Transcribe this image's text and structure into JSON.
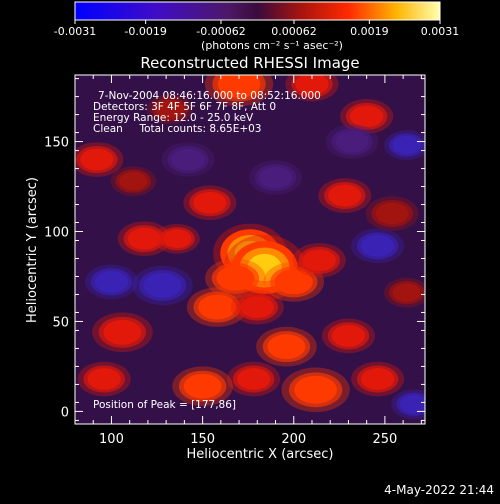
{
  "colorbar": {
    "ticks": [
      "-0.0031",
      "-0.0019",
      "-0.00062",
      "0.00062",
      "0.0019",
      "0.0031"
    ],
    "tick_values": [
      -0.0031,
      -0.0019,
      -0.00062,
      0.00062,
      0.0019,
      0.0031
    ],
    "range": [
      -0.0031,
      0.0031
    ],
    "units": "(photons cm⁻² s⁻¹ asec⁻²)"
  },
  "footer": {
    "timestamp": "4-May-2022 21:44"
  },
  "chart_data": {
    "type": "heatmap",
    "title": "Reconstructed RHESSI Image",
    "xlabel": "Heliocentric X (arcsec)",
    "ylabel": "Heliocentric Y (arcsec)",
    "xlim": [
      80,
      272
    ],
    "ylim": [
      -7,
      187
    ],
    "xticks": [
      "100",
      "150",
      "200",
      "250"
    ],
    "xtick_values": [
      100,
      150,
      200,
      250
    ],
    "yticks": [
      "0",
      "50",
      "100",
      "150"
    ],
    "ytick_values": [
      0,
      50,
      100,
      150
    ],
    "annotations": [
      "7-Nov-2004 08:46:16.000 to 08:52:16.000",
      "Detectors: 3F 4F 5F 6F 7F 8F, Att 0",
      "Energy Range: 12.0 - 25.0 keV",
      "Clean     Total counts: 8.65E+03"
    ],
    "peak_label": "Position of Peak = [177,86]",
    "peak": [
      177,
      86
    ],
    "blobs": [
      {
        "x": 176,
        "y": 88,
        "r": 9,
        "v": 1.0
      },
      {
        "x": 184,
        "y": 80,
        "r": 10,
        "v": 0.75
      },
      {
        "x": 168,
        "y": 74,
        "r": 8,
        "v": 0.55
      },
      {
        "x": 158,
        "y": 58,
        "r": 8,
        "v": 0.5
      },
      {
        "x": 180,
        "y": 58,
        "r": 7,
        "v": 0.45
      },
      {
        "x": 200,
        "y": 72,
        "r": 8,
        "v": 0.5
      },
      {
        "x": 214,
        "y": 84,
        "r": 7,
        "v": 0.45
      },
      {
        "x": 196,
        "y": 36,
        "r": 8,
        "v": 0.5
      },
      {
        "x": 212,
        "y": 12,
        "r": 9,
        "v": 0.55
      },
      {
        "x": 178,
        "y": 18,
        "r": 7,
        "v": 0.45
      },
      {
        "x": 150,
        "y": 14,
        "r": 8,
        "v": 0.5
      },
      {
        "x": 230,
        "y": 42,
        "r": 7,
        "v": 0.4
      },
      {
        "x": 246,
        "y": 18,
        "r": 7,
        "v": 0.4
      },
      {
        "x": 136,
        "y": 96,
        "r": 6,
        "v": 0.4
      },
      {
        "x": 154,
        "y": 116,
        "r": 7,
        "v": 0.4
      },
      {
        "x": 118,
        "y": 96,
        "r": 7,
        "v": 0.4
      },
      {
        "x": 106,
        "y": 44,
        "r": 8,
        "v": 0.45
      },
      {
        "x": 96,
        "y": 18,
        "r": 7,
        "v": 0.4
      },
      {
        "x": 92,
        "y": 140,
        "r": 7,
        "v": 0.4
      },
      {
        "x": 112,
        "y": 128,
        "r": 6,
        "v": 0.35
      },
      {
        "x": 170,
        "y": 182,
        "r": 9,
        "v": 0.5
      },
      {
        "x": 210,
        "y": 182,
        "r": 7,
        "v": 0.4
      },
      {
        "x": 240,
        "y": 164,
        "r": 7,
        "v": 0.4
      },
      {
        "x": 228,
        "y": 120,
        "r": 7,
        "v": 0.4
      },
      {
        "x": 254,
        "y": 110,
        "r": 7,
        "v": 0.35
      },
      {
        "x": 262,
        "y": 66,
        "r": 6,
        "v": 0.35
      },
      {
        "x": 132,
        "y": 168,
        "r": 6,
        "v": 0.35
      },
      {
        "x": 262,
        "y": 148,
        "r": 6,
        "v": -0.35
      },
      {
        "x": 246,
        "y": 92,
        "r": 7,
        "v": -0.3
      },
      {
        "x": 128,
        "y": 70,
        "r": 8,
        "v": -0.3
      },
      {
        "x": 100,
        "y": 72,
        "r": 7,
        "v": -0.3
      },
      {
        "x": 266,
        "y": 4,
        "r": 6,
        "v": -0.3
      },
      {
        "x": 142,
        "y": 140,
        "r": 7,
        "v": -0.25
      },
      {
        "x": 232,
        "y": 150,
        "r": 7,
        "v": -0.25
      },
      {
        "x": 190,
        "y": 130,
        "r": 7,
        "v": -0.2
      }
    ]
  }
}
